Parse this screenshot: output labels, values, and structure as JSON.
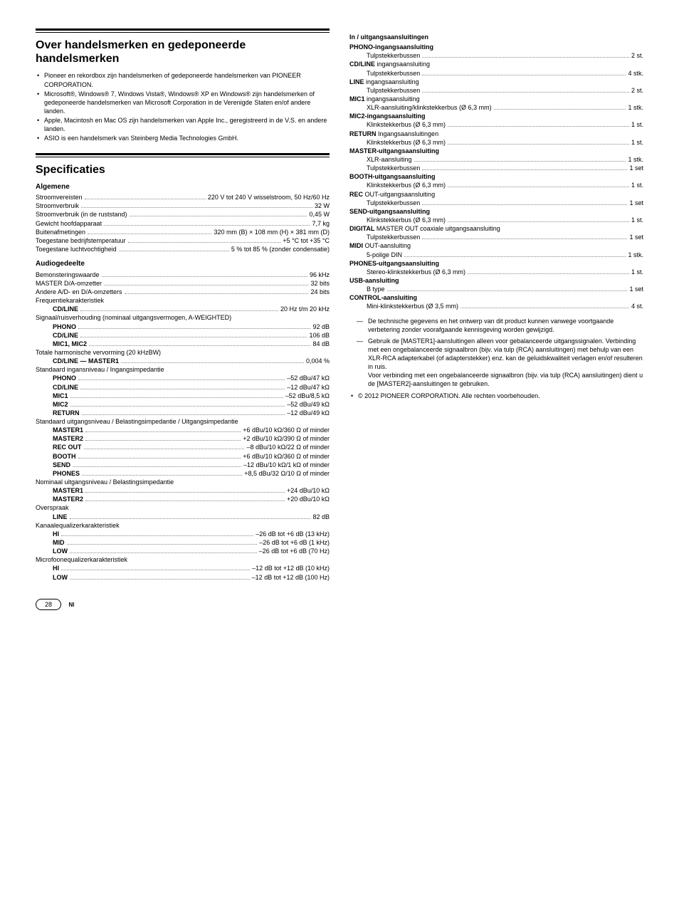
{
  "left": {
    "block_trademarks": {
      "title": "Over handelsmerken en gedeponeerde handelsmerken",
      "bullets": [
        "Pioneer en rekordbox zijn handelsmerken of gedeponeerde handelsmerken van PIONEER CORPORATION.",
        "Microsoft®, Windows® 7, Windows Vista®, Windows® XP en Windows® zijn handelsmerken of gedeponeerde handelsmerken van Microsoft Corporation in de Verenigde Staten en/of andere landen.",
        "Apple, Macintosh en Mac OS zijn handelsmerken van Apple Inc., geregistreerd in de V.S. en andere landen.",
        "ASIO is een handelsmerk van Steinberg Media Technologies GmbH."
      ]
    },
    "block_specs": {
      "title": "Specificaties",
      "sec_general": {
        "heading": "Algemene",
        "rows": [
          {
            "l": "Stroomvereisten",
            "v": "220 V tot 240 V wisselstroom, 50 Hz/60 Hz"
          },
          {
            "l": "Stroomverbruik",
            "v": "32 W"
          },
          {
            "l": "Stroomverbruik (in de ruststand)",
            "v": "0,45 W"
          },
          {
            "l": "Gewicht hoofdapparaat",
            "v": "7,7 kg"
          },
          {
            "l": "Buitenafmetingen",
            "v": "320 mm (B) × 108 mm (H) × 381 mm (D)"
          },
          {
            "l": "Toegestane bedrijfstemperatuur",
            "v": "+5 °C tot +35 °C"
          },
          {
            "l": "Toegestane luchtvochtigheid",
            "v": "5 % tot 85 % (zonder condensatie)"
          }
        ]
      },
      "sec_audio": {
        "heading": "Audiogedeelte",
        "rows_top": [
          {
            "l": "Bemonsteringswaarde",
            "v": "96 kHz"
          },
          {
            "l": "MASTER D/A-omzetter",
            "v": "32 bits"
          },
          {
            "l": "Andere A/D- en D/A-omzetters",
            "v": "24 bits"
          }
        ],
        "freq_h": "Frequentiekarakteristiek",
        "freq_rows": [
          {
            "l": "CD/LINE",
            "v": "20 Hz t/m 20 kHz"
          }
        ],
        "sn_h": "Signaal/ruisverhouding (nominaal uitgangsvermogen, A-WEIGHTED)",
        "sn_rows": [
          {
            "l": "PHONO",
            "v": "92 dB"
          },
          {
            "l": "CD/LINE",
            "v": "106 dB"
          },
          {
            "l": "MIC1, MIC2",
            "v": "84 dB"
          }
        ],
        "thd_h": "Totale harmonische vervorming (20 kHzBW)",
        "thd_rows": [
          {
            "l": "CD/LINE — MASTER1",
            "v": "0,004 %"
          }
        ],
        "in_h": "Standaard ingansniveau / Ingangsimpedantie",
        "in_rows": [
          {
            "l": "PHONO",
            "v": "–52 dBu/47 kΩ"
          },
          {
            "l": "CD/LINE",
            "v": "–12 dBu/47 kΩ"
          },
          {
            "l": "MIC1",
            "v": "–52 dBu/8,5 kΩ"
          },
          {
            "l": "MIC2",
            "v": "–52 dBu/49 kΩ"
          },
          {
            "l": "RETURN",
            "v": "–12 dBu/49 kΩ"
          }
        ],
        "out_h": "Standaard uitgangsniveau / Belastingsimpedantie / Uitgangsimpedantie",
        "out_rows": [
          {
            "l": "MASTER1",
            "v": "+6 dBu/10 kΩ/360 Ω of minder"
          },
          {
            "l": "MASTER2",
            "v": "+2 dBu/10 kΩ/390 Ω of minder"
          },
          {
            "l": "REC OUT",
            "v": "–8 dBu/10 kΩ/22 Ω of minder"
          },
          {
            "l": "BOOTH",
            "v": "+6 dBu/10 kΩ/360 Ω of minder"
          },
          {
            "l": "SEND",
            "v": "–12 dBu/10 kΩ/1 kΩ of minder"
          },
          {
            "l": "PHONES",
            "v": "+8,5 dBu/32 Ω/10 Ω of minder"
          }
        ],
        "nom_h": "Nominaal uitgangsniveau / Belastingsimpedantie",
        "nom_rows": [
          {
            "l": "MASTER1",
            "v": "+24 dBu/10 kΩ"
          },
          {
            "l": "MASTER2",
            "v": "+20 dBu/10 kΩ"
          }
        ],
        "xt_h": "Overspraak",
        "xt_rows": [
          {
            "l": "LINE",
            "v": "82 dB"
          }
        ],
        "eq_h": "Kanaalequalizerkarakteristiek",
        "eq_rows": [
          {
            "l": "HI",
            "v": "–26 dB tot +6 dB (13 kHz)"
          },
          {
            "l": "MID",
            "v": "–26 dB tot +6 dB (1 kHz)"
          },
          {
            "l": "LOW",
            "v": "–26 dB tot +6 dB (70 Hz)"
          }
        ],
        "mic_h": "Microfoonequalizerkarakteristiek",
        "mic_rows": [
          {
            "l": "HI",
            "v": "–12 dB tot +12 dB (10 kHz)"
          },
          {
            "l": "LOW",
            "v": "–12 dB tot +12 dB (100 Hz)"
          }
        ]
      }
    }
  },
  "right": {
    "io_heading": "In / uitgangsaansluitingen",
    "groups": [
      {
        "h": "PHONO-ingangsaansluiting",
        "rows": [
          {
            "l": "Tulpstekkerbussen",
            "v": "2 st."
          }
        ]
      },
      {
        "h": "CD/LINE ingangsaansluiting",
        "rows": [
          {
            "l": "Tulpstekkerbussen",
            "v": "4 stk."
          }
        ]
      },
      {
        "h": "LINE ingangsaansluiting",
        "rows": [
          {
            "l": "Tulpstekkerbussen",
            "v": "2 st."
          }
        ]
      },
      {
        "h": "MIC1 ingangsaansluiting",
        "rows": [
          {
            "l": "XLR-aansluiting/klinkstekkerbus (Ø 6,3 mm)",
            "v": "1 stk."
          }
        ]
      },
      {
        "h": "MIC2-ingangsaansluiting",
        "rows": [
          {
            "l": "Klinkstekkerbus (Ø 6,3 mm)",
            "v": "1 st."
          }
        ]
      },
      {
        "h": "RETURN Ingangsaansluitingen",
        "rows": [
          {
            "l": "Klinkstekkerbus (Ø 6,3 mm)",
            "v": "1 st."
          }
        ]
      },
      {
        "h": "MASTER-uitgangsaansluiting",
        "rows": [
          {
            "l": "XLR-aansluiting",
            "v": "1 stk."
          },
          {
            "l": "Tulpstekkerbussen",
            "v": "1 set"
          }
        ]
      },
      {
        "h": "BOOTH-uitgangsaansluiting",
        "rows": [
          {
            "l": "Klinkstekkerbus (Ø 6,3 mm)",
            "v": "1 st."
          }
        ]
      },
      {
        "h": "REC OUT-uitgangsaansluiting",
        "rows": [
          {
            "l": "Tulpstekkerbussen",
            "v": "1 set"
          }
        ]
      },
      {
        "h": "SEND-uitgangsaansluiting",
        "rows": [
          {
            "l": "Klinkstekkerbus (Ø 6,3 mm)",
            "v": "1 st."
          }
        ]
      },
      {
        "h": "DIGITAL MASTER OUT coaxiale uitgangsaansluiting",
        "rows": [
          {
            "l": "Tulpstekkerbussen",
            "v": "1 set"
          }
        ]
      },
      {
        "h": "MIDI OUT-aansluiting",
        "rows": [
          {
            "l": "5-polige DIN",
            "v": "1 stk."
          }
        ]
      },
      {
        "h": "PHONES-uitgangsaansluiting",
        "rows": [
          {
            "l": "Stereo-klinkstekkerbus (Ø 6,3 mm)",
            "v": "1 st."
          }
        ]
      },
      {
        "h": "USB-aansluiting",
        "rows": [
          {
            "l": "B type",
            "v": "1 set"
          }
        ]
      },
      {
        "h": "CONTROL-aansluiting",
        "rows": [
          {
            "l": "Mini-klinkstekkerbus (Ø 3,5 mm)",
            "v": "4 st."
          }
        ]
      }
    ],
    "notes": [
      "De technische gegevens en het ontwerp van dit product kunnen vanwege voortgaande verbetering zonder voorafgaande kennisgeving worden gewijzigd.",
      "Gebruik de [MASTER1]-aansluitingen alleen voor gebalanceerde uitgangssignalen. Verbinding met een ongebalanceerde signaalbron (bijv. via tulp (RCA) aansluitingen) met behulp van een XLR-RCA adapterkabel (of adapterstekker) enz. kan de geluidskwaliteit verlagen en/of resulteren in ruis.\nVoor verbinding met een ongebalanceerde signaalbron (bijv. via tulp (RCA) aansluitingen) dient u de [MASTER2]-aansluitingen te gebruiken."
    ],
    "copyright_bullet": "© 2012 PIONEER CORPORATION. Alle rechten voorbehouden."
  },
  "footer": {
    "page": "28",
    "lang": "Nl"
  }
}
